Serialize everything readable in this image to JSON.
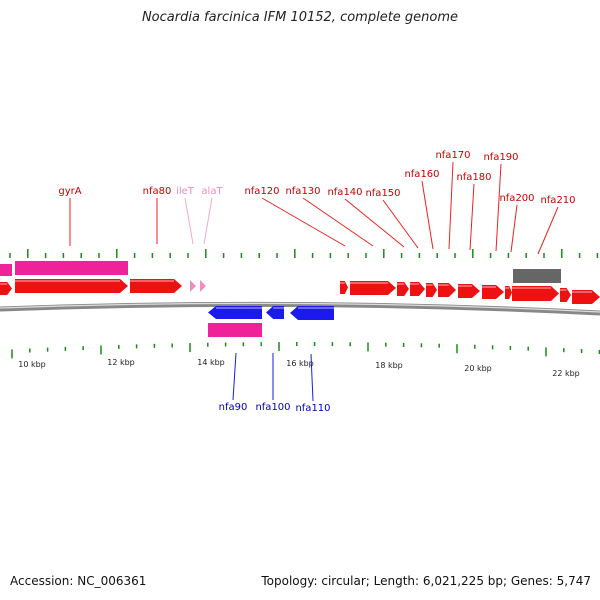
{
  "title": "Nocardia farcinica IFM 10152, complete genome",
  "footer": {
    "accession": "Accession: NC_006361",
    "summary": "Topology: circular; Length: 6,021,225 bp; Genes: 5,747"
  },
  "colors": {
    "forward_gene": "#ee1111",
    "reverse_gene": "#1a1aee",
    "rrna_trna": "#ee2299",
    "trna_label": "#f08cc0",
    "pseudo": "#666666",
    "backbone": "#888888",
    "tick": "#1a8a1a"
  },
  "axis": {
    "labels": [
      "10 kbp",
      "12 kbp",
      "14 kbp",
      "16 kbp",
      "18 kbp",
      "20 kbp",
      "22 kbp"
    ]
  },
  "top_labels": [
    {
      "text": "gyrA",
      "color": "#cc0000"
    },
    {
      "text": "nfa80",
      "color": "#cc0000"
    },
    {
      "text": "ileT",
      "color": "#f08cc0"
    },
    {
      "text": "alaT",
      "color": "#f08cc0"
    },
    {
      "text": "nfa120",
      "color": "#cc0000"
    },
    {
      "text": "nfa130",
      "color": "#cc0000"
    },
    {
      "text": "nfa140",
      "color": "#cc0000"
    },
    {
      "text": "nfa150",
      "color": "#cc0000"
    },
    {
      "text": "nfa160",
      "color": "#cc0000"
    },
    {
      "text": "nfa170",
      "color": "#cc0000"
    },
    {
      "text": "nfa180",
      "color": "#cc0000"
    },
    {
      "text": "nfa190",
      "color": "#cc0000"
    },
    {
      "text": "nfa200",
      "color": "#cc0000"
    },
    {
      "text": "nfa210",
      "color": "#cc0000"
    }
  ],
  "bottom_labels": [
    {
      "text": "nfa90",
      "color": "#0000bb"
    },
    {
      "text": "nfa100",
      "color": "#0000bb"
    },
    {
      "text": "nfa110",
      "color": "#0000bb"
    }
  ]
}
